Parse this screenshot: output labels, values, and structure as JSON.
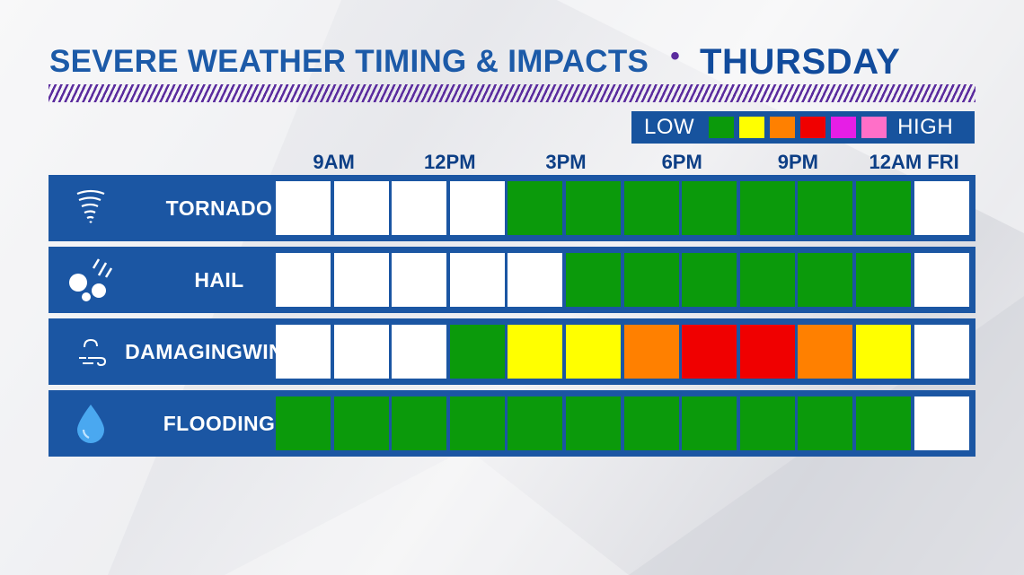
{
  "title": {
    "main": "SEVERE WEATHER TIMING & IMPACTS",
    "separator": "•",
    "day": "THURSDAY"
  },
  "legend": {
    "low_label": "LOW",
    "high_label": "HIGH",
    "levels": [
      "#0b9a0b",
      "#ffff00",
      "#ff8000",
      "#f00000",
      "#e61ee6",
      "#ff6fc8"
    ]
  },
  "colors": {
    "none": "#ffffff",
    "green": "#0b9a0b",
    "yellow": "#ffff00",
    "orange": "#ff8000",
    "red": "#f00000",
    "bar_blue": "#1b56a3",
    "title_blue": "#1c5aa8",
    "accent_purple": "#5b2c9e"
  },
  "chart_data": {
    "type": "heatmap",
    "time_labels": [
      "9AM",
      "12PM",
      "3PM",
      "6PM",
      "9PM",
      "12AM FRI"
    ],
    "time_label_slots": [
      0.5,
      2.5,
      4.5,
      6.5,
      8.5,
      10.5
    ],
    "slot_count": 12,
    "scale": [
      "none",
      "green",
      "yellow",
      "orange",
      "red",
      "magenta",
      "pink"
    ],
    "rows": [
      {
        "name": "TORNADO",
        "icon": "tornado-icon",
        "levels": [
          0,
          0,
          0,
          0,
          1,
          1,
          1,
          1,
          1,
          1,
          1,
          0
        ]
      },
      {
        "name": "HAIL",
        "icon": "hail-icon",
        "levels": [
          0,
          0,
          0,
          0,
          0,
          1,
          1,
          1,
          1,
          1,
          1,
          0
        ]
      },
      {
        "name": "DAMAGING WINDS",
        "name_line1": "DAMAGING",
        "name_line2": "WINDS",
        "icon": "wind-icon",
        "levels": [
          0,
          0,
          0,
          1,
          2,
          2,
          3,
          4,
          4,
          3,
          2,
          0
        ]
      },
      {
        "name": "FLOODING",
        "icon": "raindrop-icon",
        "levels": [
          1,
          1,
          1,
          1,
          1,
          1,
          1,
          1,
          1,
          1,
          1,
          0
        ]
      }
    ]
  }
}
